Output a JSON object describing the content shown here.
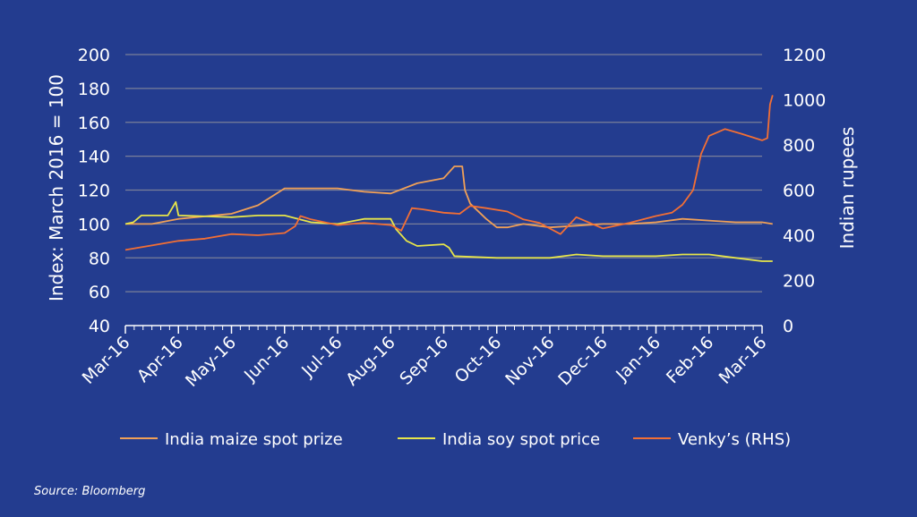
{
  "chart_data": {
    "type": "line",
    "title": "",
    "ylabel_left": "Index: March 2016 = 100",
    "ylabel_right": "Indian rupees",
    "ylim_left": [
      40,
      200
    ],
    "yticks_left": [
      "40",
      "60",
      "80",
      "100",
      "120",
      "140",
      "160",
      "180",
      "200"
    ],
    "ylim_right": [
      0,
      1200
    ],
    "yticks_right": [
      "0",
      "200",
      "400",
      "600",
      "800",
      "1000",
      "1200"
    ],
    "xticks": [
      "Mar-16",
      "Apr-16",
      "May-16",
      "Jun-16",
      "Jul-16",
      "Aug-16",
      "Sep-16",
      "Oct-16",
      "Nov-16",
      "Dec-16",
      "Jan-16",
      "Feb-16",
      "Mar-16"
    ],
    "grid": true,
    "legend_position": "bottom",
    "source": "Source: Bloomberg",
    "series": [
      {
        "name": "India maize spot prize",
        "axis": "left",
        "color": "#f0a057",
        "points": [
          [
            0,
            100
          ],
          [
            0.5,
            100
          ],
          [
            1,
            103
          ],
          [
            2,
            106
          ],
          [
            2.5,
            111
          ],
          [
            2.8,
            117
          ],
          [
            3,
            121
          ],
          [
            3.5,
            121
          ],
          [
            4,
            121
          ],
          [
            4.5,
            119
          ],
          [
            5,
            118
          ],
          [
            5.5,
            124
          ],
          [
            6,
            127
          ],
          [
            6.2,
            134
          ],
          [
            6.35,
            134
          ],
          [
            6.4,
            120
          ],
          [
            6.5,
            112
          ],
          [
            6.8,
            103
          ],
          [
            7,
            98
          ],
          [
            7.2,
            98
          ],
          [
            7.5,
            100
          ],
          [
            8,
            98
          ],
          [
            8.5,
            99
          ],
          [
            9,
            100
          ],
          [
            9.5,
            100
          ],
          [
            10,
            101
          ],
          [
            10.5,
            103
          ],
          [
            11,
            102
          ],
          [
            11.5,
            101
          ],
          [
            12,
            101
          ],
          [
            12.2,
            100
          ]
        ]
      },
      {
        "name": "India soy spot price",
        "axis": "left",
        "color": "#e7e54a",
        "points": [
          [
            0,
            100
          ],
          [
            0.15,
            101
          ],
          [
            0.3,
            105
          ],
          [
            0.8,
            105
          ],
          [
            0.95,
            113
          ],
          [
            1.0,
            105
          ],
          [
            2,
            104
          ],
          [
            2.5,
            105
          ],
          [
            3,
            105
          ],
          [
            3.5,
            101
          ],
          [
            4,
            100
          ],
          [
            4.5,
            103
          ],
          [
            5,
            103
          ],
          [
            5.1,
            97
          ],
          [
            5.3,
            90
          ],
          [
            5.5,
            87
          ],
          [
            6,
            88
          ],
          [
            6.1,
            86
          ],
          [
            6.2,
            81
          ],
          [
            7,
            80
          ],
          [
            8,
            80
          ],
          [
            8.5,
            82
          ],
          [
            9,
            81
          ],
          [
            10,
            81
          ],
          [
            10.5,
            82
          ],
          [
            11,
            82
          ],
          [
            11.5,
            80
          ],
          [
            12,
            78
          ],
          [
            12.2,
            78
          ]
        ]
      },
      {
        "name": "Venky’s (RHS)",
        "axis": "right",
        "color": "#f36f34",
        "points": [
          [
            0,
            335
          ],
          [
            0.5,
            355
          ],
          [
            1,
            375
          ],
          [
            1.5,
            385
          ],
          [
            2,
            405
          ],
          [
            2.5,
            400
          ],
          [
            3,
            410
          ],
          [
            3.2,
            440
          ],
          [
            3.3,
            485
          ],
          [
            3.5,
            470
          ],
          [
            4,
            445
          ],
          [
            4.5,
            455
          ],
          [
            5,
            445
          ],
          [
            5.2,
            420
          ],
          [
            5.4,
            520
          ],
          [
            5.6,
            515
          ],
          [
            6,
            500
          ],
          [
            6.3,
            495
          ],
          [
            6.5,
            530
          ],
          [
            6.8,
            520
          ],
          [
            7.2,
            505
          ],
          [
            7.5,
            470
          ],
          [
            7.8,
            455
          ],
          [
            8,
            430
          ],
          [
            8.2,
            405
          ],
          [
            8.5,
            480
          ],
          [
            9,
            430
          ],
          [
            9.5,
            455
          ],
          [
            10,
            485
          ],
          [
            10.3,
            500
          ],
          [
            10.5,
            535
          ],
          [
            10.7,
            600
          ],
          [
            10.85,
            760
          ],
          [
            11,
            840
          ],
          [
            11.3,
            870
          ],
          [
            11.6,
            850
          ],
          [
            12,
            820
          ],
          [
            12.1,
            830
          ],
          [
            12.15,
            980
          ],
          [
            12.2,
            1020
          ]
        ]
      }
    ]
  }
}
